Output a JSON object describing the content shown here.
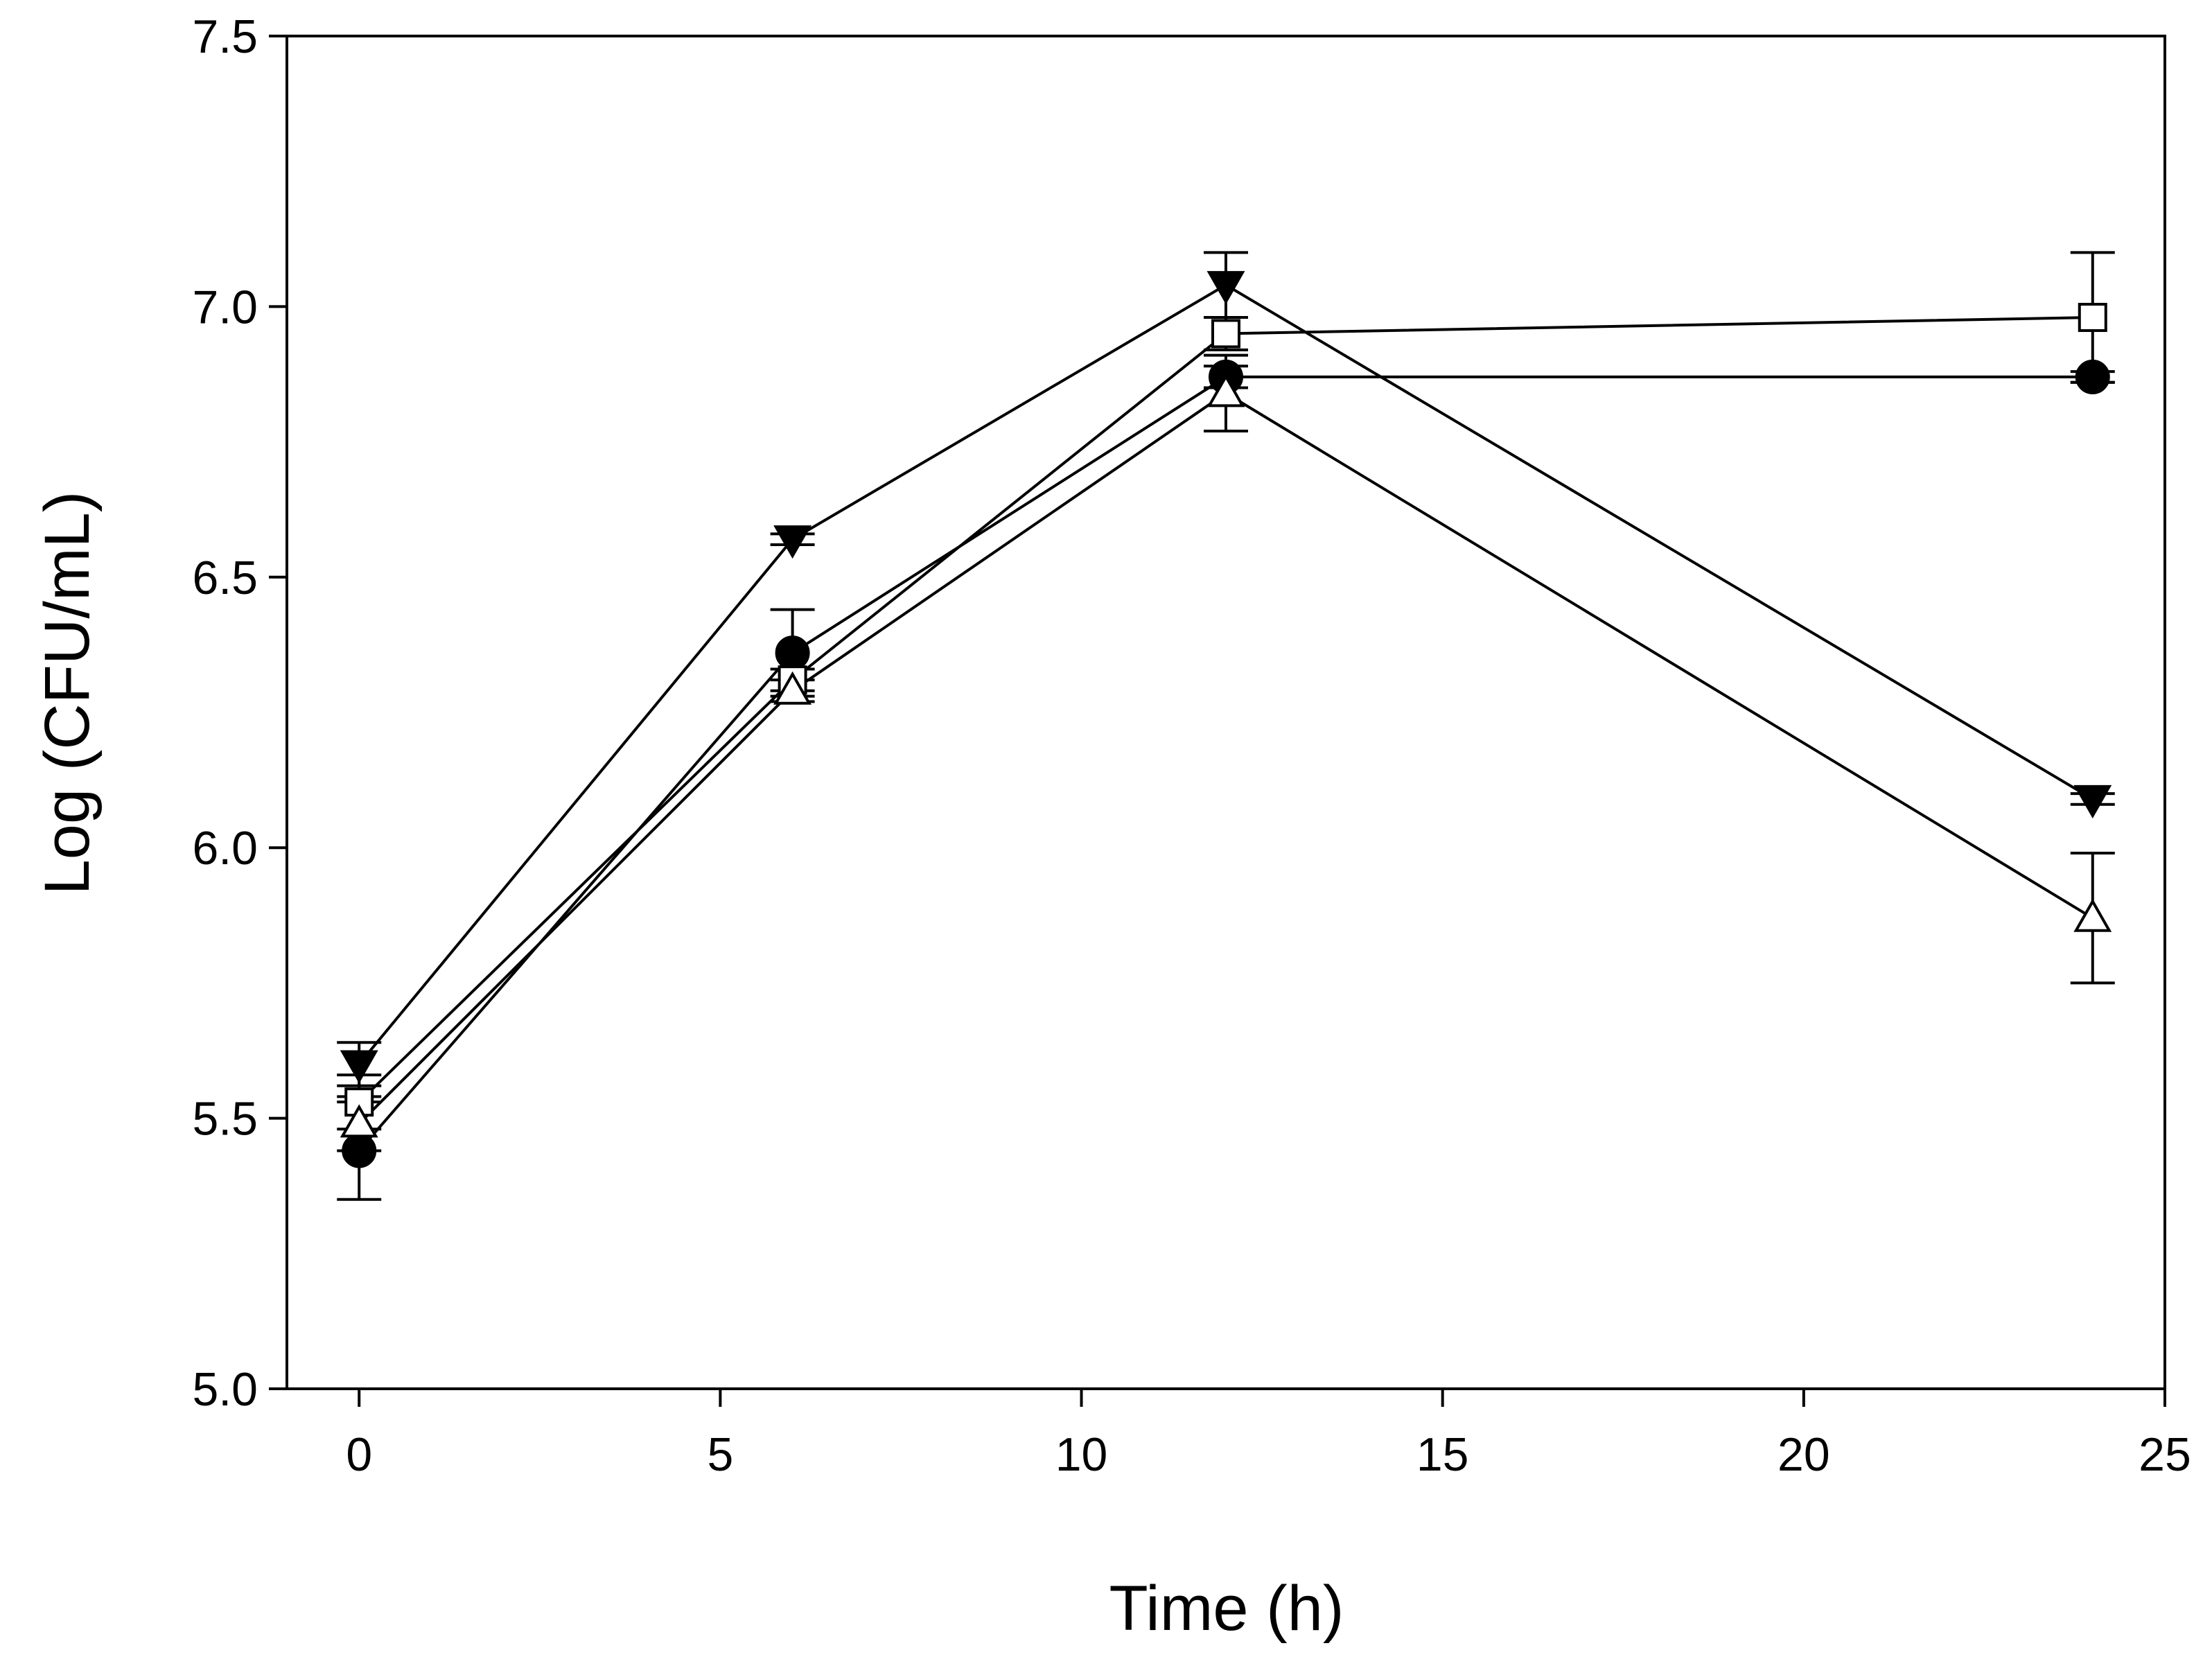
{
  "chart_data": {
    "type": "line",
    "title": "",
    "xlabel": "Time (h)",
    "ylabel": "Log (CFU/mL)",
    "xlim": [
      -1,
      25
    ],
    "ylim": [
      5.0,
      7.5
    ],
    "xticks": [
      0,
      5,
      10,
      15,
      20,
      25
    ],
    "yticks": [
      5.0,
      5.5,
      6.0,
      6.5,
      7.0,
      7.5
    ],
    "xtick_labels": [
      "0",
      "5",
      "10",
      "15",
      "20",
      "25"
    ],
    "ytick_labels": [
      "5.0",
      "5.5",
      "6.0",
      "6.5",
      "7.0",
      "7.5"
    ],
    "grid": false,
    "legend": null,
    "x": [
      0,
      6,
      12,
      24
    ],
    "series": [
      {
        "name": "filled-circle",
        "marker": "circle",
        "filled": true,
        "values": [
          5.44,
          6.36,
          6.87,
          6.87
        ],
        "errors": [
          0.09,
          0.08,
          0.02,
          0.01
        ]
      },
      {
        "name": "open-square",
        "marker": "square",
        "filled": false,
        "values": [
          5.53,
          6.31,
          6.95,
          6.98
        ],
        "errors": [
          0.05,
          0.02,
          0.03,
          0.12
        ]
      },
      {
        "name": "filled-down-triangle",
        "marker": "triangle-down",
        "filled": true,
        "values": [
          5.6,
          6.57,
          7.04,
          6.09
        ],
        "errors": [
          0.04,
          0.01,
          0.06,
          0.01
        ]
      },
      {
        "name": "open-up-triangle",
        "marker": "triangle-up",
        "filled": false,
        "values": [
          5.49,
          6.29,
          6.84,
          5.87
        ],
        "errors": [
          0.05,
          0.02,
          0.07,
          0.12
        ]
      }
    ]
  }
}
